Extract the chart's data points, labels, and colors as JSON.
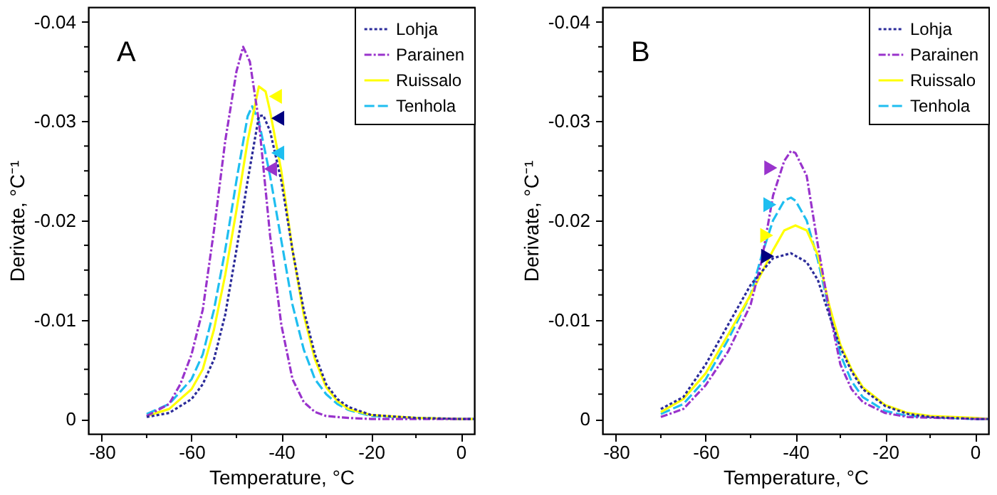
{
  "chart_data": [
    {
      "type": "line",
      "annotations": [
        "A"
      ],
      "xlabel": "Temperature, °C",
      "ylabel": "Derivate, °C⁻¹",
      "legend": "top right",
      "grid": false,
      "xlim": [
        -83,
        3
      ],
      "xticks": [
        -80,
        {
          "value": -70,
          "label": null
        },
        -60,
        {
          "value": -50,
          "label": null
        },
        -40,
        {
          "value": -30,
          "label": null
        },
        -20,
        {
          "value": -10,
          "label": null
        },
        0
      ],
      "ylim": [
        0.0015,
        -0.0415
      ],
      "yticks": [
        0,
        {
          "value": -0.0025,
          "label": null
        },
        {
          "value": -0.005,
          "label": null
        },
        {
          "value": -0.0075,
          "label": null
        },
        -0.01,
        {
          "value": -0.0125,
          "label": null
        },
        {
          "value": -0.015,
          "label": null
        },
        {
          "value": -0.0175,
          "label": null
        },
        -0.02,
        {
          "value": -0.0225,
          "label": null
        },
        {
          "value": -0.025,
          "label": null
        },
        {
          "value": -0.0275,
          "label": null
        },
        -0.03,
        {
          "value": -0.0325,
          "label": null
        },
        {
          "value": -0.035,
          "label": null
        },
        {
          "value": -0.0375,
          "label": null
        },
        -0.04
      ],
      "series": [
        {
          "name": "Lohja",
          "color": "#2b2b99",
          "line_style": "dotted",
          "x": [
            -70,
            -65,
            -60,
            -57.5,
            -55,
            -52.5,
            -50,
            -47.5,
            -45,
            -44,
            -42.5,
            -40,
            -37.5,
            -35,
            -32.5,
            -30,
            -27.5,
            -25,
            -20,
            -10,
            0,
            3
          ],
          "values": [
            -0.0002,
            -0.0006,
            -0.002,
            -0.0035,
            -0.006,
            -0.0105,
            -0.017,
            -0.024,
            -0.0305,
            -0.0306,
            -0.029,
            -0.024,
            -0.017,
            -0.011,
            -0.0065,
            -0.0035,
            -0.002,
            -0.0012,
            -0.0004,
            -0.0001,
            0,
            0
          ]
        },
        {
          "name": "Parainen",
          "color": "#9933cc",
          "line_style": "dashdot",
          "x": [
            -70,
            -65,
            -62.5,
            -60,
            -57.5,
            -55,
            -52.5,
            -50,
            -48.5,
            -47,
            -45,
            -42.5,
            -40,
            -37.5,
            -35,
            -32.5,
            -30,
            -25,
            -20,
            0,
            3
          ],
          "values": [
            -0.0003,
            -0.0015,
            -0.0035,
            -0.0065,
            -0.011,
            -0.019,
            -0.028,
            -0.035,
            -0.0375,
            -0.036,
            -0.03,
            -0.0185,
            -0.0095,
            -0.004,
            -0.0017,
            -0.0007,
            -0.0003,
            -0.0001,
            0,
            0,
            0
          ]
        },
        {
          "name": "Ruissalo",
          "color": "#ffff00",
          "line_style": "solid",
          "x": [
            -70,
            -65,
            -60,
            -57.5,
            -55,
            -52.5,
            -50,
            -47.5,
            -45,
            -43.5,
            -42.5,
            -40,
            -37.5,
            -35,
            -32.5,
            -30,
            -27.5,
            -25,
            -20,
            -10,
            0,
            3
          ],
          "values": [
            -0.0003,
            -0.001,
            -0.003,
            -0.005,
            -0.009,
            -0.0145,
            -0.021,
            -0.028,
            -0.0335,
            -0.033,
            -0.031,
            -0.025,
            -0.017,
            -0.0105,
            -0.006,
            -0.0032,
            -0.0018,
            -0.001,
            -0.0004,
            -0.0001,
            0,
            0
          ]
        },
        {
          "name": "Tenhola",
          "color": "#1ebef0",
          "line_style": "dashed",
          "x": [
            -70,
            -65,
            -60,
            -57.5,
            -55,
            -52.5,
            -50,
            -47.5,
            -46.5,
            -45,
            -42.5,
            -40,
            -37.5,
            -35,
            -32.5,
            -30,
            -27.5,
            -25,
            -20,
            -10,
            0,
            3
          ],
          "values": [
            -0.0005,
            -0.0015,
            -0.004,
            -0.0065,
            -0.011,
            -0.017,
            -0.024,
            -0.0305,
            -0.0315,
            -0.03,
            -0.0245,
            -0.018,
            -0.0115,
            -0.007,
            -0.004,
            -0.0025,
            -0.0015,
            -0.0009,
            -0.0003,
            -0.0001,
            0,
            0
          ]
        },
        {
          "type": "scatter",
          "marker": "triangle",
          "color": "#ffff00",
          "x": [
            -41.3
          ],
          "values": [
            -0.0325
          ]
        },
        {
          "type": "scatter",
          "marker": "triangle",
          "color": "#000080",
          "x": [
            -40.8
          ],
          "values": [
            -0.0303
          ]
        },
        {
          "type": "scatter",
          "marker": "triangle",
          "color": "#1ebef0",
          "x": [
            -40.8
          ],
          "values": [
            -0.0268
          ]
        },
        {
          "type": "scatter",
          "marker": "triangle",
          "color": "#9933cc",
          "x": [
            -42.4
          ],
          "values": [
            -0.0252
          ]
        }
      ]
    },
    {
      "type": "line",
      "annotations": [
        "B"
      ],
      "xlabel": "Temperature, °C",
      "ylabel": "Derivate, °C⁻¹",
      "legend": "top right",
      "grid": false,
      "xlim": [
        -83,
        3
      ],
      "xticks": [
        -80,
        {
          "value": -70,
          "label": null
        },
        -60,
        {
          "value": -50,
          "label": null
        },
        -40,
        {
          "value": -30,
          "label": null
        },
        -20,
        {
          "value": -10,
          "label": null
        },
        0
      ],
      "ylim": [
        0.0015,
        -0.0415
      ],
      "yticks": [
        0,
        {
          "value": -0.0025,
          "label": null
        },
        {
          "value": -0.005,
          "label": null
        },
        {
          "value": -0.0075,
          "label": null
        },
        -0.01,
        {
          "value": -0.0125,
          "label": null
        },
        {
          "value": -0.015,
          "label": null
        },
        {
          "value": -0.0175,
          "label": null
        },
        -0.02,
        {
          "value": -0.0225,
          "label": null
        },
        {
          "value": -0.025,
          "label": null
        },
        {
          "value": -0.0275,
          "label": null
        },
        -0.03,
        {
          "value": -0.0325,
          "label": null
        },
        {
          "value": -0.035,
          "label": null
        },
        {
          "value": -0.0375,
          "label": null
        },
        -0.04
      ],
      "series": [
        {
          "name": "Lohja",
          "color": "#2b2b99",
          "line_style": "dotted",
          "x": [
            -70,
            -65,
            -60,
            -55,
            -50,
            -45,
            -41,
            -37.5,
            -35,
            -32.5,
            -30,
            -27.5,
            -25,
            -20,
            -15,
            -10,
            0,
            3
          ],
          "values": [
            -0.001,
            -0.0022,
            -0.0055,
            -0.0095,
            -0.0135,
            -0.0162,
            -0.0167,
            -0.0158,
            -0.014,
            -0.0105,
            -0.0072,
            -0.0048,
            -0.003,
            -0.0013,
            -0.0005,
            -0.0002,
            0,
            0
          ]
        },
        {
          "name": "Parainen",
          "color": "#9933cc",
          "line_style": "dashdot",
          "x": [
            -70,
            -65,
            -60,
            -55,
            -50,
            -47.5,
            -45,
            -42.5,
            -41,
            -40,
            -37.5,
            -35,
            -32.5,
            -30,
            -27.5,
            -25,
            -20,
            -15,
            0,
            3
          ],
          "values": [
            -0.0002,
            -0.001,
            -0.0034,
            -0.0068,
            -0.0115,
            -0.016,
            -0.0225,
            -0.026,
            -0.027,
            -0.0268,
            -0.0245,
            -0.0175,
            -0.011,
            -0.0055,
            -0.003,
            -0.0017,
            -0.0006,
            -0.0002,
            0,
            0
          ]
        },
        {
          "name": "Ruissalo",
          "color": "#ffff00",
          "line_style": "solid",
          "x": [
            -70,
            -65,
            -60,
            -55,
            -50,
            -45,
            -42.5,
            -40,
            -37.5,
            -35,
            -32.5,
            -30,
            -27.5,
            -25,
            -20,
            -15,
            -10,
            0,
            3
          ],
          "values": [
            -0.0007,
            -0.002,
            -0.0046,
            -0.0085,
            -0.0125,
            -0.017,
            -0.019,
            -0.0195,
            -0.019,
            -0.0165,
            -0.0115,
            -0.0075,
            -0.005,
            -0.0032,
            -0.0014,
            -0.0006,
            -0.0003,
            -0.0001,
            0
          ]
        },
        {
          "name": "Tenhola",
          "color": "#1ebef0",
          "line_style": "dashed",
          "x": [
            -70,
            -65,
            -60,
            -55,
            -50,
            -47.5,
            -45,
            -42.5,
            -41,
            -40,
            -37.5,
            -35,
            -32.5,
            -30,
            -27.5,
            -25,
            -20,
            -15,
            0,
            3
          ],
          "values": [
            -0.0005,
            -0.0015,
            -0.004,
            -0.008,
            -0.0125,
            -0.0165,
            -0.02,
            -0.022,
            -0.0223,
            -0.022,
            -0.02,
            -0.016,
            -0.011,
            -0.0065,
            -0.0038,
            -0.0022,
            -0.0008,
            -0.0003,
            0,
            0
          ]
        },
        {
          "type": "scatter",
          "marker": "triangle",
          "color": "#9933cc",
          "x": [
            -45.5
          ],
          "values": [
            -0.0253
          ]
        },
        {
          "type": "scatter",
          "marker": "triangle",
          "color": "#1ebef0",
          "x": [
            -45.7
          ],
          "values": [
            -0.0216
          ]
        },
        {
          "type": "scatter",
          "marker": "triangle",
          "color": "#ffff00",
          "x": [
            -46.4
          ],
          "values": [
            -0.0185
          ]
        },
        {
          "type": "scatter",
          "marker": "triangle",
          "color": "#000080",
          "x": [
            -46.2
          ],
          "values": [
            -0.0164
          ]
        }
      ]
    }
  ]
}
